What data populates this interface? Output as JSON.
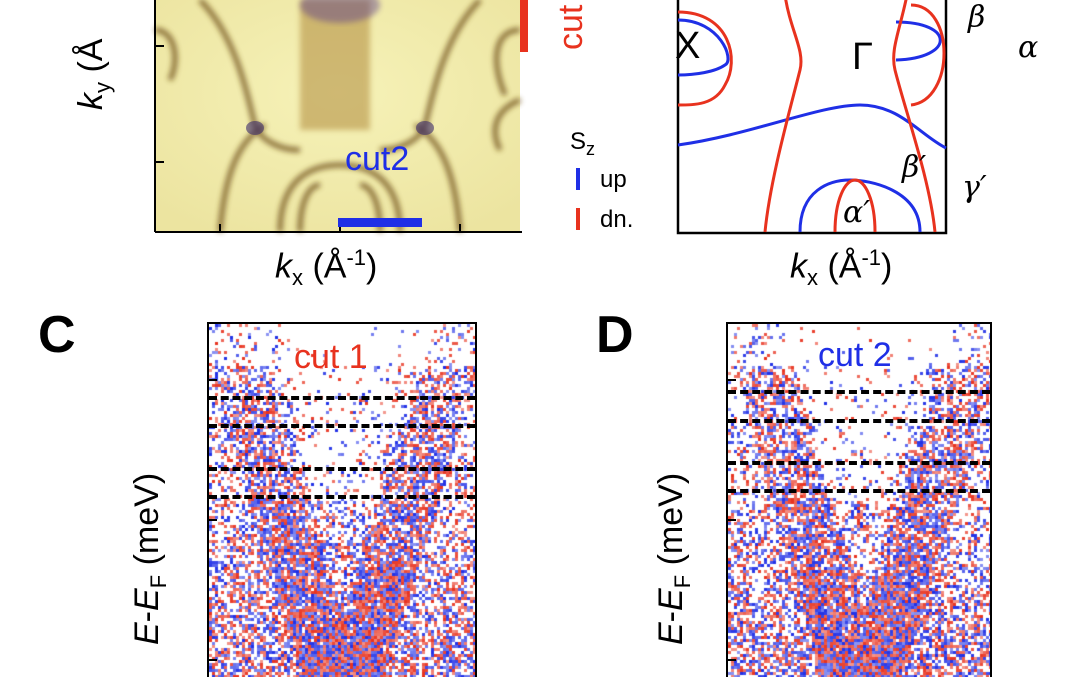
{
  "panel_a": {
    "ky_symbol": "k",
    "ky_sub": "y",
    "ky_unit": "(Å",
    "kx_symbol": "k",
    "kx_sub": "x",
    "kx_unit_open": "(Å",
    "kx_unit_sup": "-1",
    "kx_unit_close": ")",
    "cut1_partial": "cut",
    "cut2_label": "cut2"
  },
  "legend": {
    "title": "S",
    "title_sub": "z",
    "up_label": "up",
    "down_label": "dn."
  },
  "panel_b": {
    "x_point": "X",
    "gamma_point": "Γ",
    "beta": "β",
    "alpha": "α",
    "beta_prime": "β′",
    "gamma_prime": "γ′",
    "alpha_prime": "α′",
    "kx_symbol": "k",
    "kx_sub": "x",
    "kx_unit_open": "(Å",
    "kx_unit_sup": "-1",
    "kx_unit_close": ")"
  },
  "panel_c": {
    "letter": "C",
    "cut_label": "cut 1",
    "ylabel_e": "E",
    "ylabel_dash": "-",
    "ylabel_ef": "E",
    "ylabel_ef_sub": "F",
    "ylabel_unit": " (meV)"
  },
  "panel_d": {
    "letter": "D",
    "cut_label": "cut 2",
    "ylabel_e": "E",
    "ylabel_dash": "-",
    "ylabel_ef": "E",
    "ylabel_ef_sub": "F",
    "ylabel_unit": " (meV)"
  },
  "colors": {
    "spin_up": "#1f2fe6",
    "spin_down": "#e8321e",
    "arpes_bg": "#f3f0b0",
    "arpes_band": "#7a5a1a"
  }
}
